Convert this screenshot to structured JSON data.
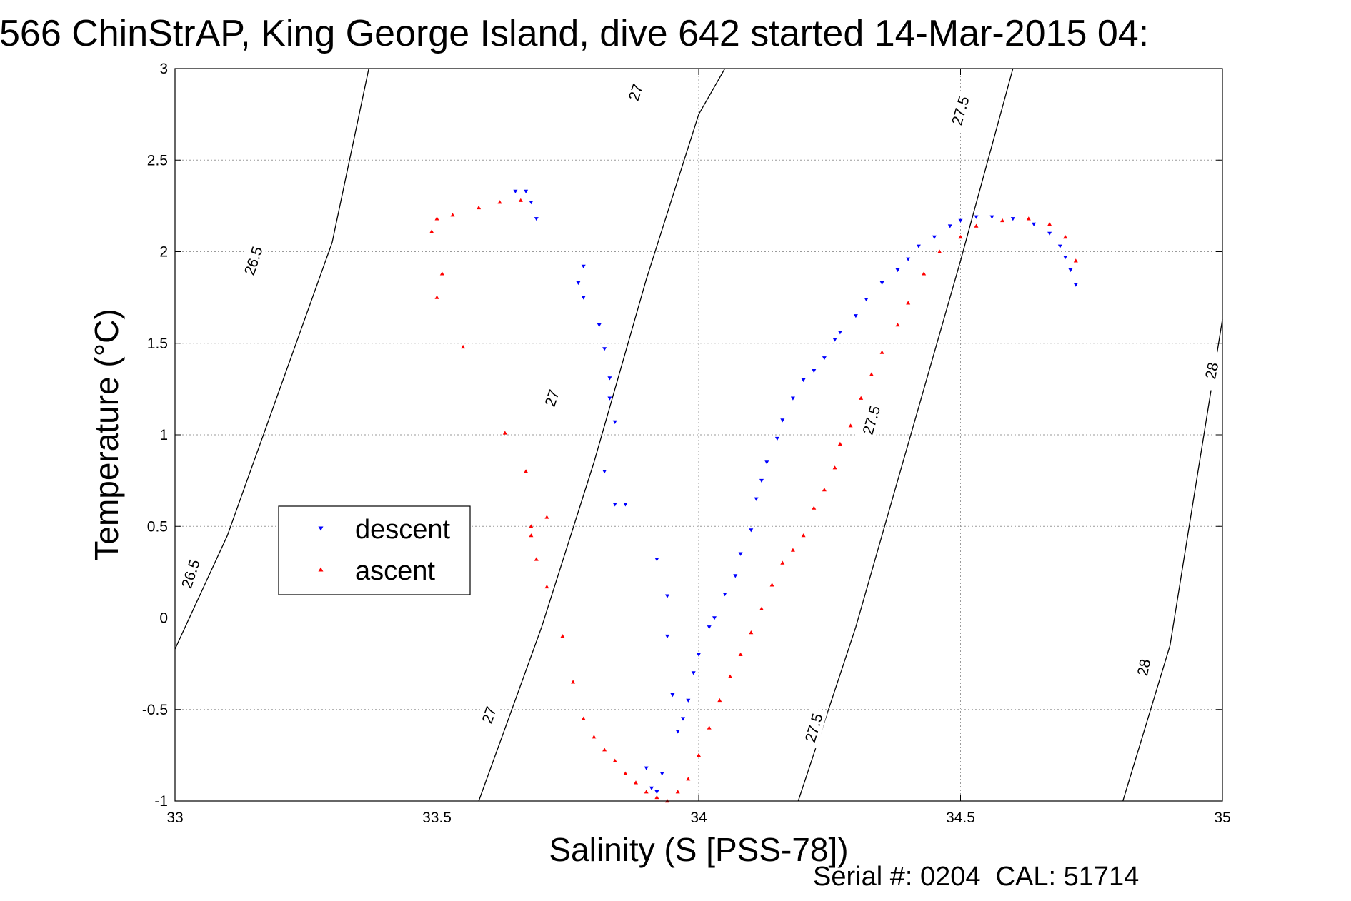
{
  "chart_data": {
    "type": "scatter",
    "title": "566 ChinStrAP, King George Island, dive 642 started 14-Mar-2015 04:",
    "xlabel": "Salinity (S [PSS-78])",
    "ylabel": "Temperature (°C)",
    "xlim": [
      33,
      35
    ],
    "ylim": [
      -1,
      3
    ],
    "xticks": [
      "33",
      "33.5",
      "34",
      "34.5",
      "35"
    ],
    "yticks": [
      "-1",
      "-0.5",
      "0",
      "0.5",
      "1",
      "1.5",
      "2",
      "2.5",
      "3"
    ],
    "grid": true,
    "legend_position": "middle-left",
    "footer": "Serial #: 0204  CAL: 51714",
    "colors": {
      "descent": "#0000ff",
      "ascent": "#ff0000",
      "contour": "#000000"
    },
    "contours": [
      {
        "label": "26.5",
        "points": [
          [
            33.0,
            -0.17
          ],
          [
            33.1,
            0.45
          ],
          [
            33.2,
            1.25
          ],
          [
            33.3,
            2.05
          ],
          [
            33.37,
            3.0
          ]
        ],
        "label_positions": [
          [
            33.15,
            1.95
          ],
          [
            33.03,
            0.24
          ]
        ]
      },
      {
        "label": "27",
        "points": [
          [
            33.58,
            -1.0
          ],
          [
            33.7,
            -0.05
          ],
          [
            33.8,
            0.85
          ],
          [
            33.9,
            1.85
          ],
          [
            34.0,
            2.75
          ],
          [
            34.05,
            3.0
          ]
        ],
        "label_positions": [
          [
            33.88,
            2.87
          ],
          [
            33.72,
            1.2
          ],
          [
            33.6,
            -0.53
          ]
        ]
      },
      {
        "label": "27.5",
        "points": [
          [
            34.19,
            -1.0
          ],
          [
            34.3,
            -0.05
          ],
          [
            34.4,
            0.95
          ],
          [
            34.5,
            1.95
          ],
          [
            34.6,
            3.0
          ]
        ],
        "label_positions": [
          [
            34.5,
            2.77
          ],
          [
            34.33,
            1.08
          ],
          [
            34.22,
            -0.6
          ]
        ]
      },
      {
        "label": "28",
        "points": [
          [
            34.81,
            -1.0
          ],
          [
            34.9,
            -0.15
          ],
          [
            35.0,
            1.63
          ]
        ],
        "label_positions": [
          [
            34.98,
            1.35
          ],
          [
            34.85,
            -0.27
          ]
        ]
      }
    ],
    "series": [
      {
        "name": "descent",
        "marker": "triangle-down",
        "x": [
          33.65,
          33.67,
          33.68,
          33.69,
          33.78,
          33.77,
          33.78,
          33.81,
          33.82,
          33.83,
          33.83,
          33.84,
          33.82,
          33.84,
          33.86,
          33.9,
          33.91,
          33.92,
          33.93,
          33.92,
          33.94,
          33.94,
          33.95,
          33.96,
          33.97,
          33.98,
          33.99,
          34.0,
          34.02,
          34.03,
          34.05,
          34.07,
          34.08,
          34.1,
          34.11,
          34.12,
          34.13,
          34.15,
          34.16,
          34.18,
          34.2,
          34.22,
          34.24,
          34.26,
          34.27,
          34.3,
          34.32,
          34.35,
          34.38,
          34.4,
          34.42,
          34.45,
          34.48,
          34.5,
          34.53,
          34.56,
          34.6,
          34.64,
          34.67,
          34.69,
          34.7,
          34.71,
          34.72
        ],
        "y": [
          2.33,
          2.33,
          2.27,
          2.18,
          1.92,
          1.83,
          1.75,
          1.6,
          1.47,
          1.31,
          1.2,
          1.07,
          0.8,
          0.62,
          0.62,
          -0.82,
          -0.93,
          -0.95,
          -0.85,
          0.32,
          0.12,
          -0.1,
          -0.42,
          -0.62,
          -0.55,
          -0.45,
          -0.3,
          -0.2,
          -0.05,
          0.0,
          0.13,
          0.23,
          0.35,
          0.48,
          0.65,
          0.75,
          0.85,
          0.98,
          1.08,
          1.2,
          1.3,
          1.35,
          1.42,
          1.52,
          1.56,
          1.65,
          1.74,
          1.83,
          1.9,
          1.96,
          2.03,
          2.08,
          2.14,
          2.17,
          2.19,
          2.19,
          2.18,
          2.15,
          2.1,
          2.03,
          1.97,
          1.9,
          1.82
        ]
      },
      {
        "name": "ascent",
        "marker": "triangle-up",
        "x": [
          33.66,
          33.62,
          33.58,
          33.53,
          33.5,
          33.49,
          33.5,
          33.51,
          33.55,
          33.63,
          33.67,
          33.68,
          33.69,
          33.71,
          33.68,
          33.71,
          33.74,
          33.76,
          33.78,
          33.8,
          33.82,
          33.84,
          33.86,
          33.88,
          33.9,
          33.92,
          33.94,
          33.96,
          33.98,
          34.0,
          34.02,
          34.04,
          34.06,
          34.08,
          34.1,
          34.12,
          34.14,
          34.16,
          34.18,
          34.2,
          34.22,
          34.24,
          34.26,
          34.27,
          34.29,
          34.31,
          34.33,
          34.35,
          34.38,
          34.4,
          34.43,
          34.46,
          34.5,
          34.53,
          34.58,
          34.63,
          34.67,
          34.7,
          34.72
        ],
        "y": [
          2.28,
          2.27,
          2.24,
          2.2,
          2.18,
          2.11,
          1.75,
          1.88,
          1.48,
          1.01,
          0.8,
          0.5,
          0.32,
          0.55,
          0.45,
          0.17,
          -0.1,
          -0.35,
          -0.55,
          -0.65,
          -0.72,
          -0.78,
          -0.85,
          -0.9,
          -0.95,
          -0.98,
          -1.0,
          -0.95,
          -0.88,
          -0.75,
          -0.6,
          -0.45,
          -0.32,
          -0.2,
          -0.08,
          0.05,
          0.18,
          0.3,
          0.37,
          0.45,
          0.6,
          0.7,
          0.82,
          0.95,
          1.05,
          1.2,
          1.33,
          1.45,
          1.6,
          1.72,
          1.88,
          2.0,
          2.08,
          2.14,
          2.17,
          2.18,
          2.15,
          2.08,
          1.95
        ]
      }
    ]
  }
}
